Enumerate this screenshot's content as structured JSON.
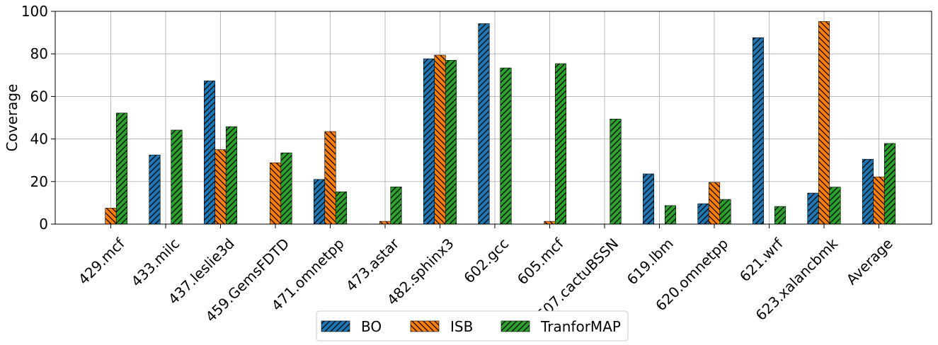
{
  "chart_data": {
    "type": "bar",
    "title": "",
    "xlabel": "",
    "ylabel": "Coverage",
    "ylim": [
      0,
      100
    ],
    "yticks": [
      0,
      20,
      40,
      60,
      80,
      100
    ],
    "grid": true,
    "legend_position": "bottom-center",
    "categories": [
      "429.mcf",
      "433.milc",
      "437.leslie3d",
      "459.GemsFDTD",
      "471.omnetpp",
      "473.astar",
      "482.sphinx3",
      "602.gcc",
      "605.mcf",
      "607.cactuBSSN",
      "619.lbm",
      "620.omnetpp",
      "621.wrf",
      "623.xalancbmk",
      "Average"
    ],
    "series": [
      {
        "name": "BO",
        "color": "#1f77b4",
        "hatch": "forward",
        "values": [
          0,
          32.5,
          67.3,
          0,
          21,
          0,
          77.7,
          94.2,
          0,
          0,
          23.6,
          9.6,
          87.6,
          14.6,
          30.5
        ]
      },
      {
        "name": "ISB",
        "color": "#ff7f0e",
        "hatch": "backward",
        "values": [
          7.5,
          0,
          35,
          28.8,
          43.5,
          1.3,
          79.4,
          0,
          1.3,
          0,
          0,
          19.6,
          0,
          95.2,
          22.2
        ]
      },
      {
        "name": "TranforMAP",
        "color": "#2ca02c",
        "hatch": "forward",
        "values": [
          52.2,
          44.2,
          45.8,
          33.5,
          15.2,
          17.5,
          77,
          73.4,
          75.4,
          49.4,
          8.7,
          11.6,
          8.3,
          17.4,
          37.9
        ]
      }
    ]
  }
}
